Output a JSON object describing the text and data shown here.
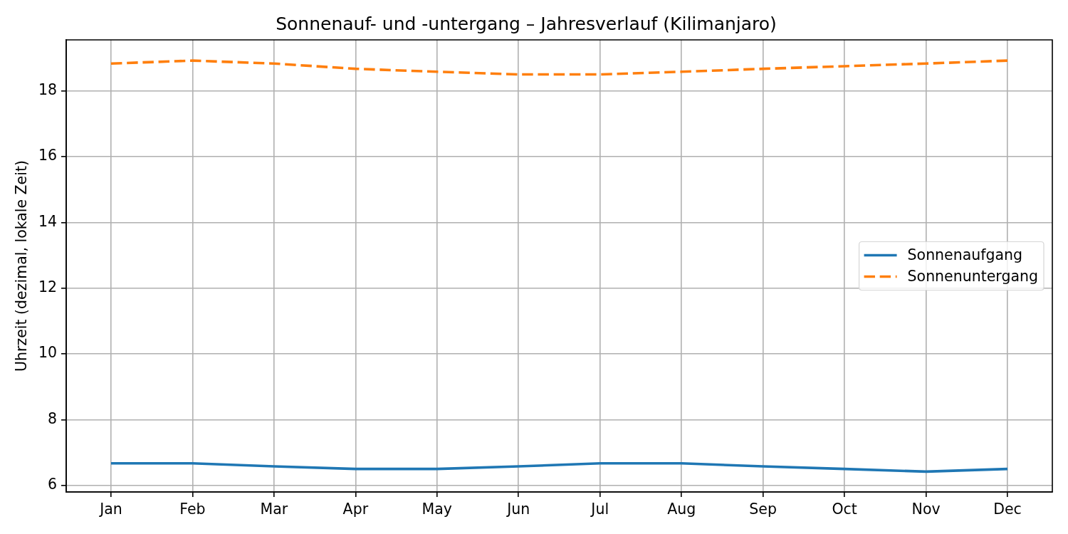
{
  "chart_data": {
    "type": "line",
    "title": "Sonnenauf- und -untergang – Jahresverlauf (Kilimanjaro)",
    "ylabel": "Uhrzeit (dezimal, lokale Zeit)",
    "categories": [
      "Jan",
      "Feb",
      "Mar",
      "Apr",
      "May",
      "Jun",
      "Jul",
      "Aug",
      "Sep",
      "Oct",
      "Nov",
      "Dec"
    ],
    "series": [
      {
        "name": "Sonnenaufgang",
        "color": "#1f77b4",
        "line_style": "solid",
        "values": [
          6.67,
          6.67,
          6.58,
          6.5,
          6.5,
          6.58,
          6.67,
          6.67,
          6.58,
          6.5,
          6.42,
          6.5
        ]
      },
      {
        "name": "Sonnenuntergang",
        "color": "#ff7f0e",
        "line_style": "dashed",
        "values": [
          18.83,
          18.92,
          18.83,
          18.67,
          18.58,
          18.5,
          18.5,
          18.58,
          18.67,
          18.75,
          18.83,
          18.92
        ]
      }
    ],
    "ylim": [
      5.8,
      19.55
    ],
    "yticks": [
      6,
      8,
      10,
      12,
      14,
      16,
      18
    ],
    "grid": true,
    "legend": "right"
  }
}
